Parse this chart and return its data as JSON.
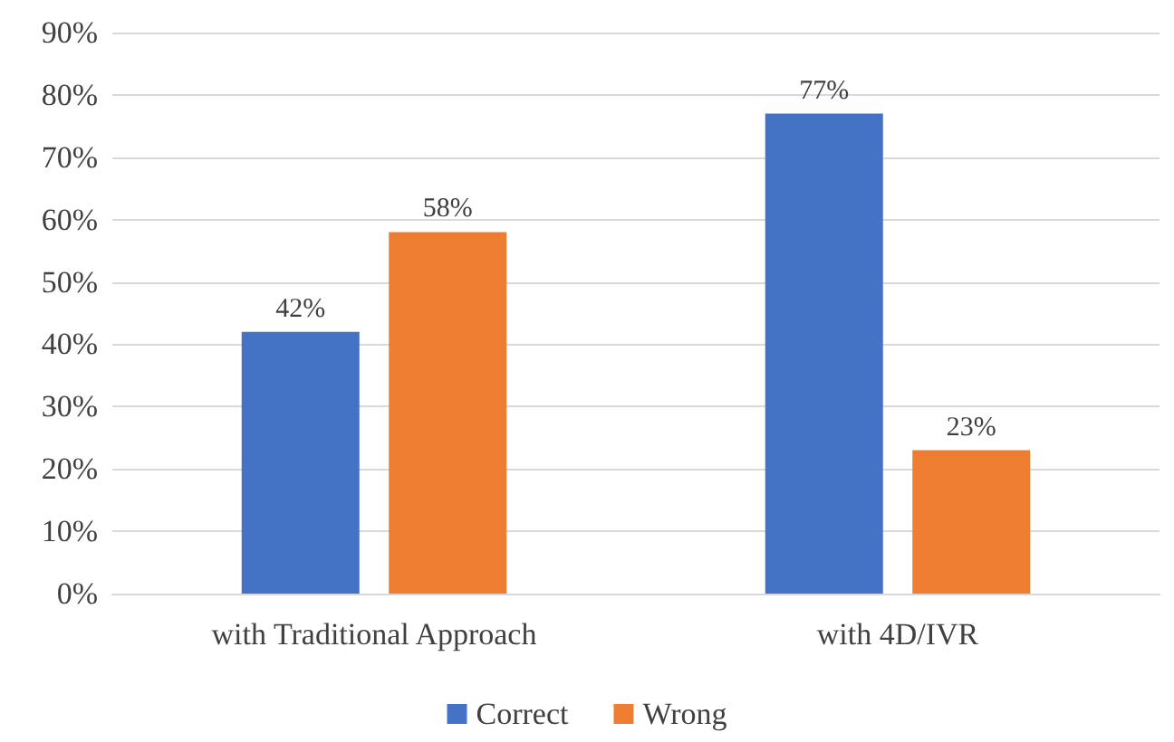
{
  "chart_data": {
    "type": "bar",
    "categories": [
      "with Traditional Approach",
      "with 4D/IVR"
    ],
    "series": [
      {
        "name": "Correct",
        "color": "#4472c4",
        "values": [
          42,
          77
        ],
        "value_labels": [
          "42%",
          "77%"
        ]
      },
      {
        "name": "Wrong",
        "color": "#ed7d31",
        "values": [
          58,
          23
        ],
        "value_labels": [
          "58%",
          "23%"
        ]
      }
    ],
    "ylim": [
      0,
      90
    ],
    "yticks": [
      {
        "value": 0,
        "label": "0%"
      },
      {
        "value": 10,
        "label": "10%"
      },
      {
        "value": 20,
        "label": "20%"
      },
      {
        "value": 30,
        "label": "30%"
      },
      {
        "value": 40,
        "label": "40%"
      },
      {
        "value": 50,
        "label": "50%"
      },
      {
        "value": 60,
        "label": "60%"
      },
      {
        "value": 70,
        "label": "70%"
      },
      {
        "value": 80,
        "label": "80%"
      },
      {
        "value": 90,
        "label": "90%"
      }
    ],
    "grid": "y",
    "legend": "bottom"
  }
}
